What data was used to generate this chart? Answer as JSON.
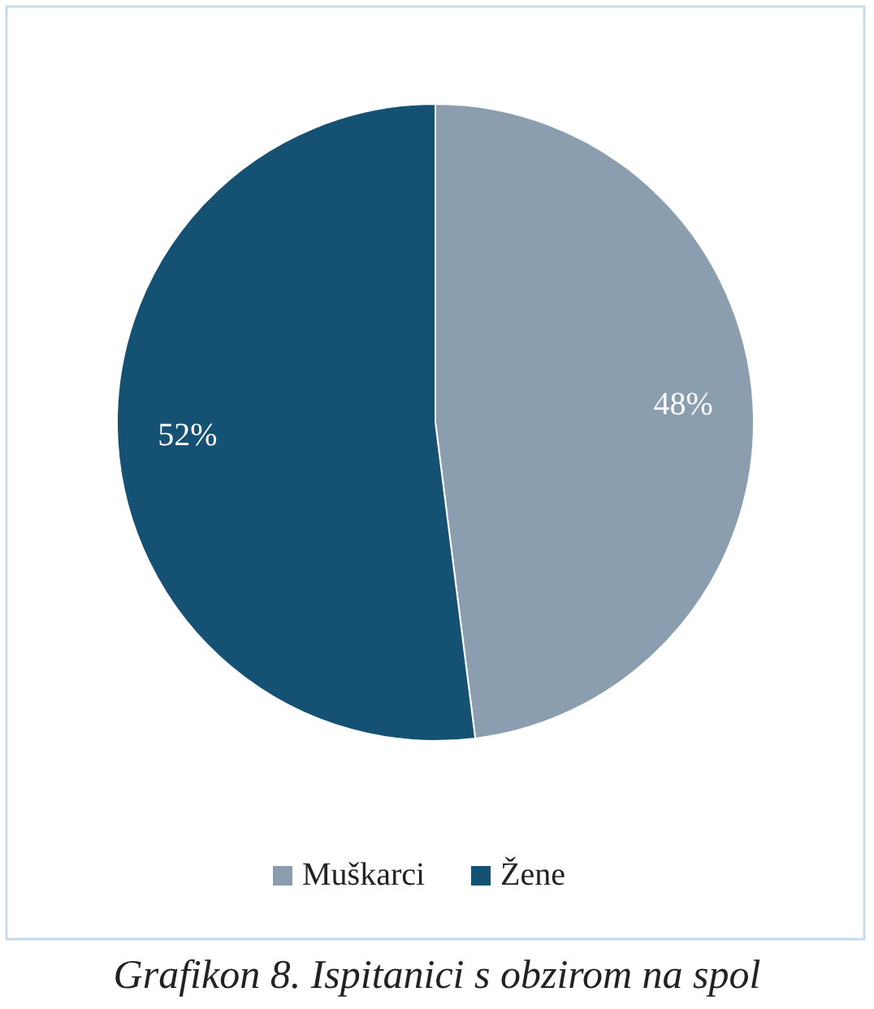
{
  "chart_data": {
    "type": "pie",
    "categories": [
      "Muškarci",
      "Žene"
    ],
    "values": [
      48,
      52
    ],
    "colors": [
      "#8a9eb0",
      "#145173"
    ],
    "value_labels": [
      "48%",
      "52%"
    ],
    "legend": "bottom",
    "annotations": [
      "Grafikon 8. Ispitanici s obzirom na spol"
    ]
  }
}
